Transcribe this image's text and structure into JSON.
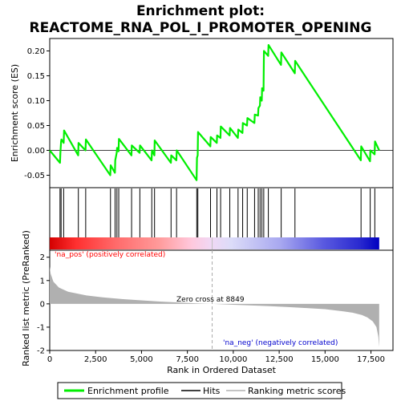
{
  "title_line1": "Enrichment plot:",
  "title_line2": "REACTOME_RNA_POL_I_PROMOTER_OPENING",
  "colors": {
    "es_line": "#00ee00",
    "hits": "#000000",
    "metric_fill": "#b0b0b0",
    "pos_label": "#ff0000",
    "neg_label": "#0000cd",
    "zero_line": "#aaaaaa"
  },
  "chart_data": [
    {
      "type": "line",
      "panel": "enrichment",
      "ylabel": "Enrichment score (ES)",
      "ylim": [
        -0.075,
        0.225
      ],
      "yticks": [
        -0.05,
        0.0,
        0.05,
        0.1,
        0.15,
        0.2
      ],
      "ytick_labels": [
        "-0.05",
        "0.00",
        "0.05",
        "0.10",
        "0.15",
        "0.20"
      ],
      "xlim": [
        0,
        18700
      ],
      "series": [
        {
          "x": [
            0,
            560,
            580,
            620,
            640,
            760,
            780,
            1550,
            1570,
            1950,
            1970,
            3300,
            3320,
            3550,
            3570,
            3650,
            3670,
            3750,
            3770,
            4450,
            4470,
            4900,
            4920,
            5550,
            5570,
            5700,
            5720,
            6600,
            6620,
            6900,
            6920,
            8000,
            8020,
            8060,
            8080,
            8750,
            8770,
            9100,
            9120,
            9300,
            9320,
            9800,
            9820,
            10250,
            10270,
            10500,
            10520,
            10750,
            10770,
            11150,
            11170,
            11350,
            11370,
            11450,
            11470,
            11550,
            11570,
            11650,
            11670,
            11900,
            11920,
            12600,
            12620,
            13350,
            13370,
            16950,
            16970,
            17450,
            17470,
            17700,
            17720,
            17950
          ],
          "y": [
            0.0,
            -0.025,
            -0.005,
            0.018,
            0.022,
            0.015,
            0.04,
            -0.01,
            0.015,
            0.0,
            0.022,
            -0.05,
            -0.03,
            -0.045,
            -0.02,
            -0.005,
            0.005,
            -0.002,
            0.023,
            -0.01,
            0.01,
            -0.005,
            0.01,
            -0.02,
            0.0,
            -0.01,
            0.02,
            -0.025,
            -0.01,
            -0.02,
            0.0,
            -0.06,
            -0.015,
            -0.01,
            0.037,
            0.008,
            0.027,
            0.015,
            0.03,
            0.025,
            0.048,
            0.03,
            0.045,
            0.025,
            0.042,
            0.035,
            0.055,
            0.05,
            0.065,
            0.055,
            0.072,
            0.07,
            0.085,
            0.09,
            0.107,
            0.1,
            0.125,
            0.12,
            0.2,
            0.19,
            0.212,
            0.172,
            0.197,
            0.155,
            0.18,
            -0.02,
            0.008,
            -0.022,
            0.0,
            -0.008,
            0.018,
            0.0
          ]
        }
      ]
    },
    {
      "type": "scatter",
      "panel": "hits",
      "hit_positions": [
        560,
        620,
        760,
        1560,
        1960,
        3310,
        3560,
        3660,
        3760,
        4460,
        4910,
        5560,
        5710,
        6610,
        6910,
        8010,
        8070,
        8760,
        9110,
        9310,
        9810,
        10260,
        10510,
        10760,
        11160,
        11360,
        11460,
        11560,
        11660,
        11910,
        12610,
        13360,
        16960,
        17460,
        17710
      ]
    },
    {
      "type": "area",
      "panel": "ranked_metric",
      "ylabel": "Ranked list metric (PreRanked)",
      "xlabel": "Rank in Ordered Dataset",
      "ylim": [
        -2,
        2.3
      ],
      "yticks": [
        -2,
        -1,
        0,
        1,
        2
      ],
      "ytick_labels": [
        "-2",
        "-1",
        "0",
        "1",
        "2"
      ],
      "xlim": [
        0,
        18700
      ],
      "xticks": [
        0,
        2500,
        5000,
        7500,
        10000,
        12500,
        15000,
        17500
      ],
      "xtick_labels": [
        "0",
        "2,500",
        "5,000",
        "7,500",
        "10,000",
        "12,500",
        "15,000",
        "17,500"
      ],
      "x": [
        0,
        50,
        200,
        500,
        1000,
        2000,
        3000,
        4000,
        5000,
        6000,
        7000,
        8000,
        8849,
        10000,
        11000,
        12000,
        13000,
        14000,
        15000,
        16000,
        16500,
        17000,
        17300,
        17600,
        17800,
        17900,
        17950
      ],
      "y": [
        1.6,
        1.3,
        0.95,
        0.7,
        0.52,
        0.36,
        0.27,
        0.2,
        0.15,
        0.1,
        0.06,
        0.02,
        0.0,
        -0.04,
        -0.07,
        -0.1,
        -0.14,
        -0.18,
        -0.23,
        -0.32,
        -0.38,
        -0.48,
        -0.58,
        -0.75,
        -1.0,
        -1.4,
        -1.85
      ],
      "annotations": {
        "pos_label": "'na_pos' (positively correlated)",
        "neg_label": "'na_neg' (negatively correlated)",
        "zero_cross": "Zero cross at 8849",
        "zero_cross_rank": 8849
      }
    }
  ],
  "legend": {
    "items": [
      {
        "label": "Enrichment profile",
        "icon": "green-line-icon"
      },
      {
        "label": "Hits",
        "icon": "black-line-icon"
      },
      {
        "label": "Ranking metric scores",
        "icon": "gray-line-icon"
      }
    ]
  }
}
